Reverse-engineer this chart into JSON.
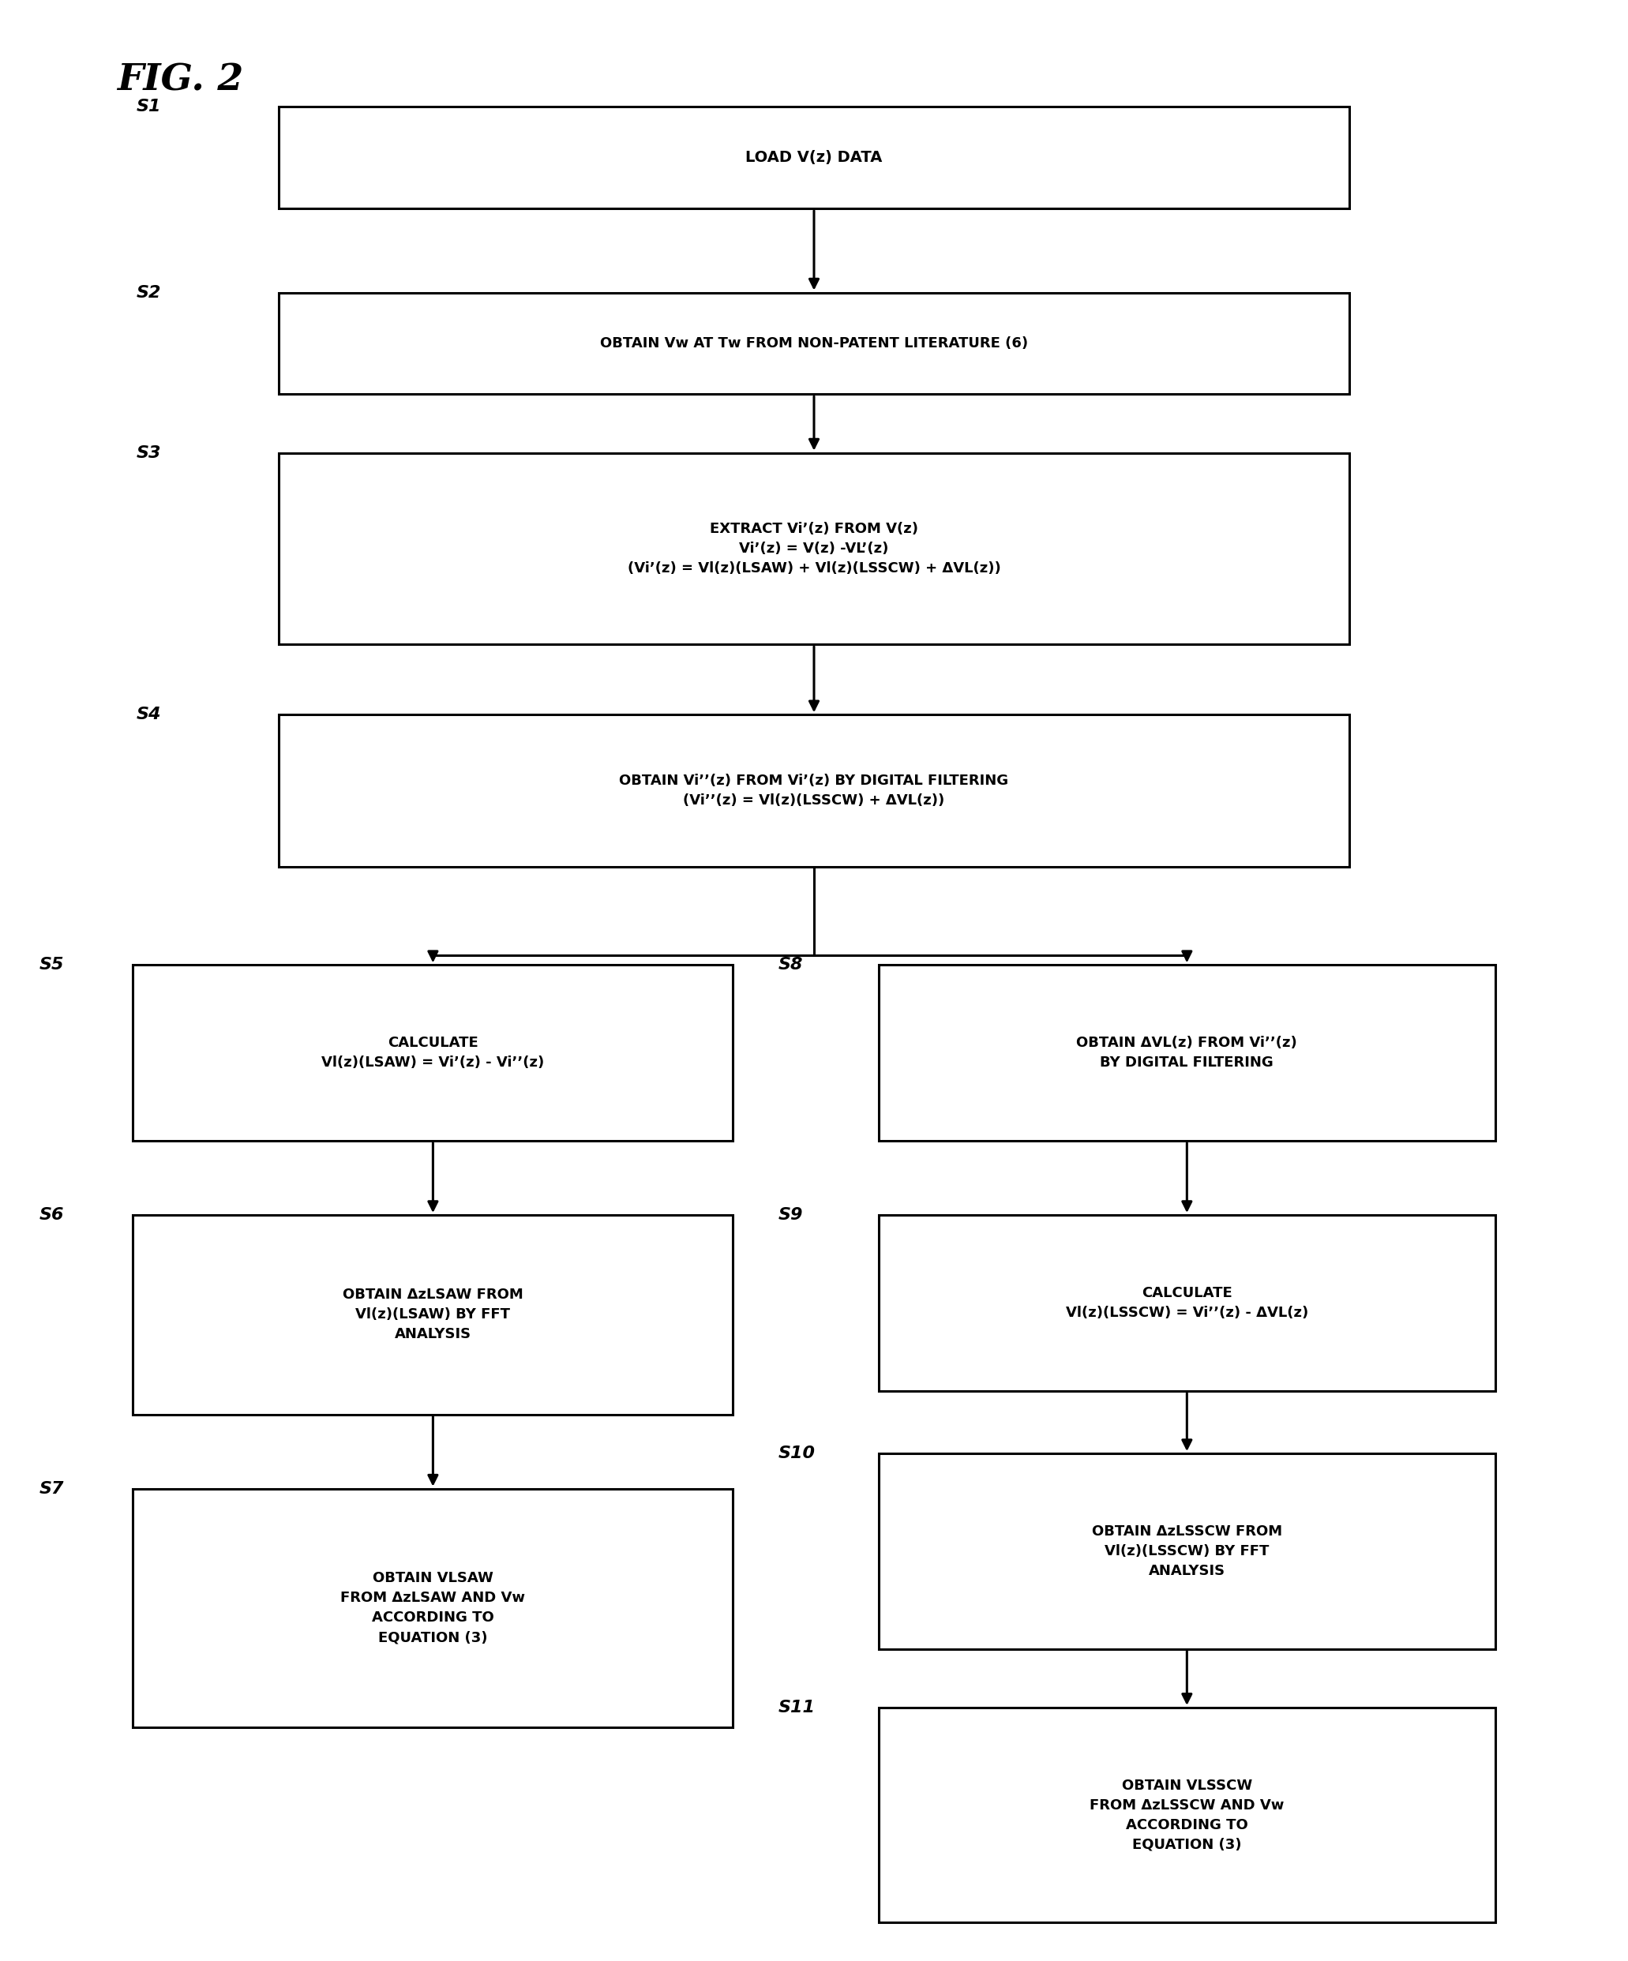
{
  "title": "FIG. 2",
  "background_color": "#ffffff",
  "text_color": "#000000",
  "s1_text": "LOAD V(z) DATA",
  "s2_text": "OBTAIN Vᴡ AT Tᴡ FROM NON-PATENT LITERATURE (6)",
  "s3_text": "EXTRACT Vi’(z) FROM V(z)\nVi’(z) = V(z) -VL’(z)\n(Vi’(z) = Vl(z)(LSAW) + Vl(z)(LSSCW) + ΔVL(z))",
  "s4_text": "OBTAIN Vi’’(z) FROM Vi’(z) BY DIGITAL FILTERING\n(Vi’’(z) = Vl(z)(LSSCW) + ΔVL(z))",
  "s5_text": "CALCULATE\nVl(z)(LSAW) = Vi’(z) - Vi’’(z)",
  "s6_text": "OBTAIN ΔzLSAW FROM\nVl(z)(LSAW) BY FFT\nANALYSIS",
  "s7_text": "OBTAIN VLSAW\nFROM ΔzLSAW AND Vw\nACCORDING TO\nEQUATION (3)",
  "s8_text": "OBTAIN ΔVL(z) FROM Vi’’(z)\nBY DIGITAL FILTERING",
  "s9_text": "CALCULATE\nVl(z)(LSSCW) = Vi’’(z) - ΔVL(z)",
  "s10_text": "OBTAIN ΔzLSSCW FROM\nVl(z)(LSSCW) BY FFT\nANALYSIS",
  "s11_text": "OBTAIN VLSSCW\nFROM ΔzLSSCW AND Vw\nACCORDING TO\nEQUATION (3)"
}
